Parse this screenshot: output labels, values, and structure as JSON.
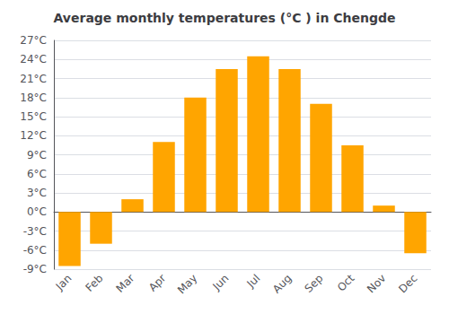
{
  "chart_data": {
    "type": "bar",
    "title": "Average monthly temperatures (°C ) in Chengde",
    "categories": [
      "Jan",
      "Feb",
      "Mar",
      "Apr",
      "May",
      "Jun",
      "Jul",
      "Aug",
      "Sep",
      "Oct",
      "Nov",
      "Dec"
    ],
    "values": [
      -8.5,
      -5.0,
      2.0,
      11.0,
      18.0,
      22.5,
      24.5,
      22.5,
      17.0,
      10.5,
      1.0,
      -6.5
    ],
    "color": "#FFA500",
    "ylim": [
      -9,
      27
    ],
    "yticks": [
      {
        "value": -9,
        "label": "-9°C"
      },
      {
        "value": -6,
        "label": "-6°C"
      },
      {
        "value": -3,
        "label": "-3°C"
      },
      {
        "value": 0,
        "label": "0°C"
      },
      {
        "value": 3,
        "label": "3°C"
      },
      {
        "value": 6,
        "label": "6°C"
      },
      {
        "value": 9,
        "label": "9°C"
      },
      {
        "value": 12,
        "label": "12°C"
      },
      {
        "value": 15,
        "label": "15°C"
      },
      {
        "value": 18,
        "label": "18°C"
      },
      {
        "value": 21,
        "label": "21°C"
      },
      {
        "value": 24,
        "label": "24°C"
      },
      {
        "value": 27,
        "label": "27°C"
      }
    ],
    "grid": true
  }
}
